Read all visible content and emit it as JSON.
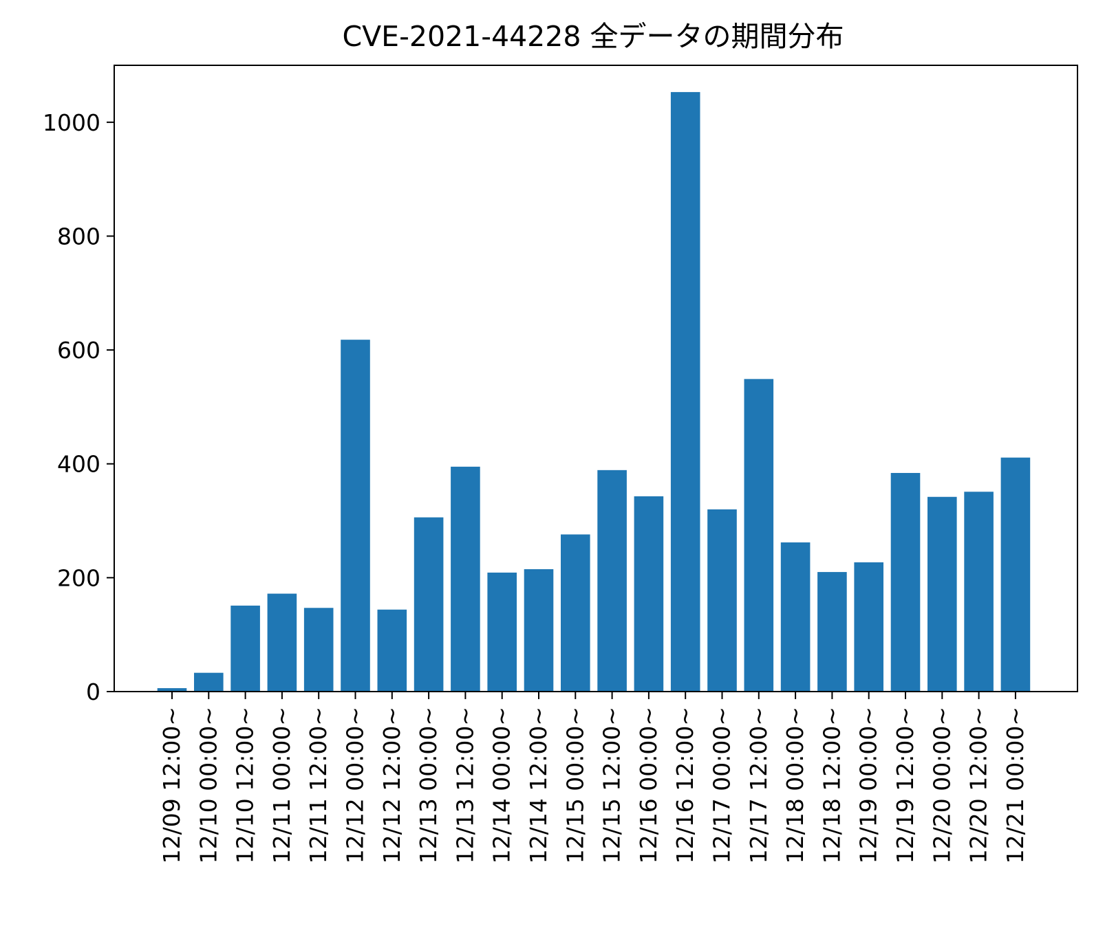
{
  "chart_data": {
    "type": "bar",
    "title": "CVE-2021-44228 全データの期間分布",
    "xlabel": "",
    "ylabel": "",
    "categories": [
      "12/09 12:00~",
      "12/10 00:00~",
      "12/10 12:00~",
      "12/11 00:00~",
      "12/11 12:00~",
      "12/12 00:00~",
      "12/12 12:00~",
      "12/13 00:00~",
      "12/13 12:00~",
      "12/14 00:00~",
      "12/14 12:00~",
      "12/15 00:00~",
      "12/15 12:00~",
      "12/16 00:00~",
      "12/16 12:00~",
      "12/17 00:00~",
      "12/17 12:00~",
      "12/18 00:00~",
      "12/18 12:00~",
      "12/19 00:00~",
      "12/19 12:00~",
      "12/20 00:00~",
      "12/20 12:00~",
      "12/21 00:00~"
    ],
    "values": [
      6,
      33,
      151,
      172,
      147,
      618,
      144,
      306,
      395,
      209,
      215,
      276,
      389,
      343,
      1053,
      320,
      549,
      262,
      210,
      227,
      384,
      342,
      351,
      411
    ],
    "ylim": [
      0,
      1100
    ],
    "yticks": [
      0,
      200,
      400,
      600,
      800,
      1000
    ],
    "grid": false,
    "bar_color": "#1f77b4"
  }
}
